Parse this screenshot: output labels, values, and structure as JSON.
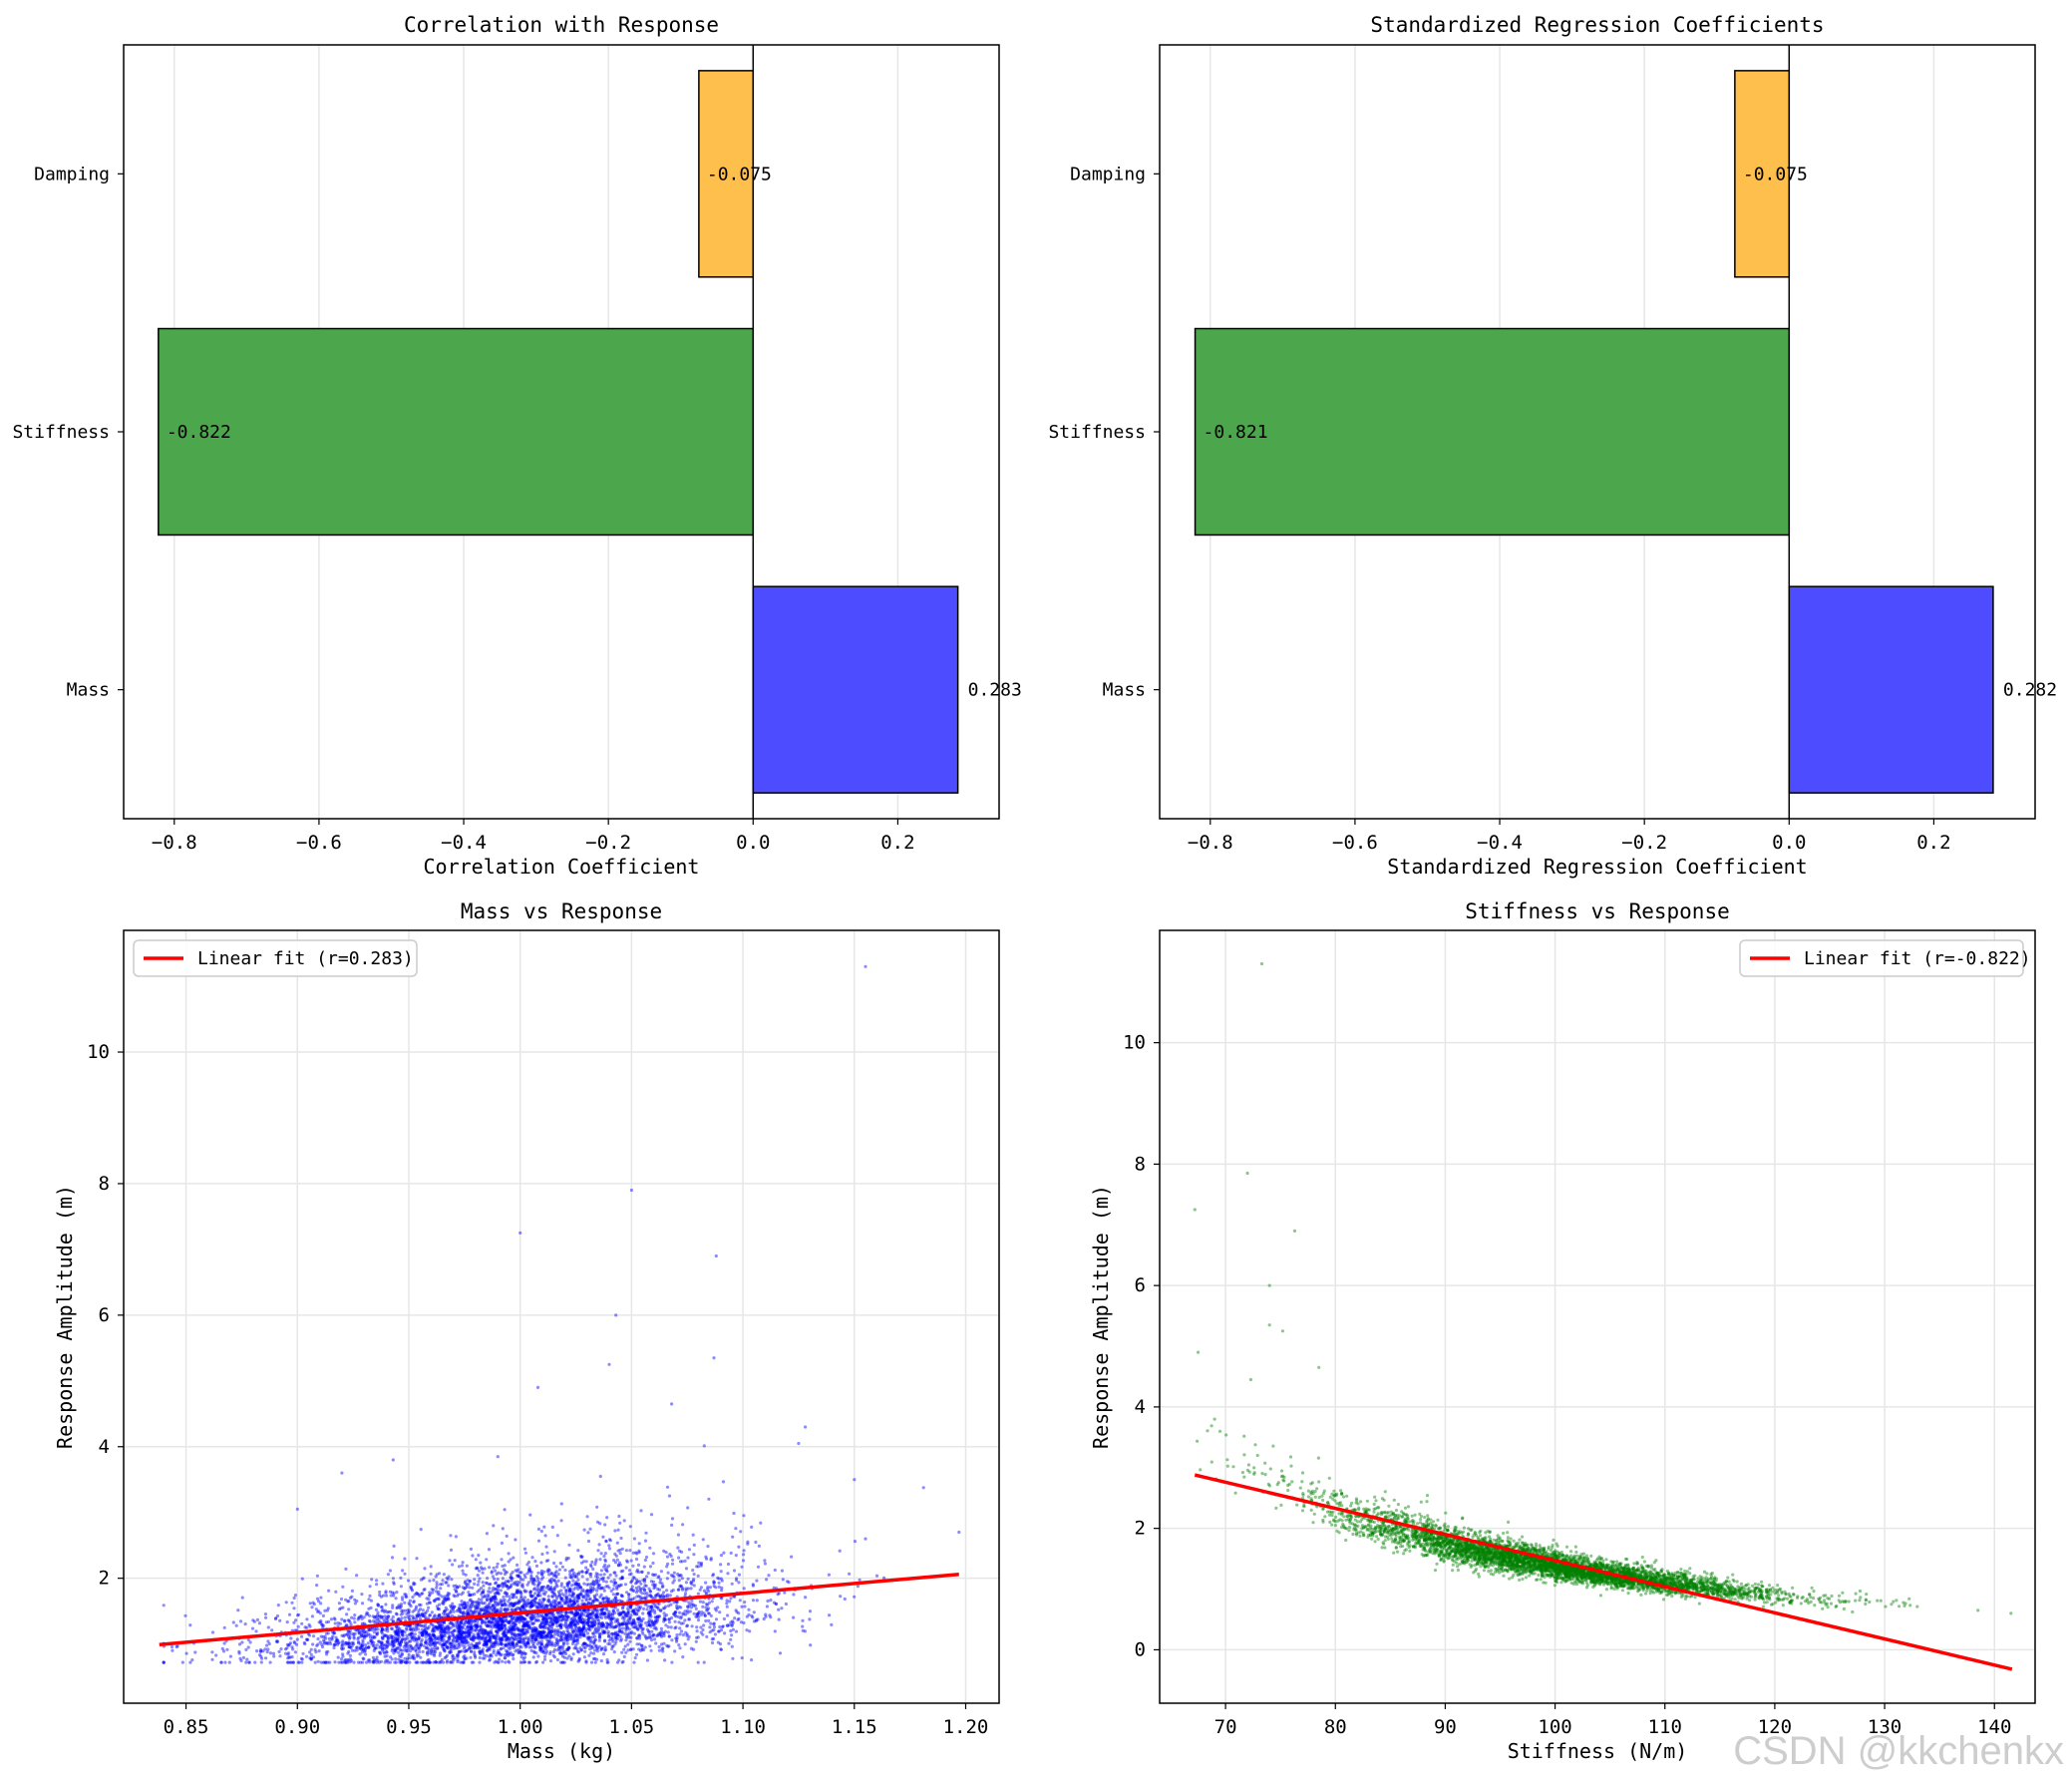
{
  "watermark": "CSDN @kkchenkx",
  "chart_data": [
    {
      "type": "bar",
      "orientation": "horizontal",
      "title": "Correlation with Response",
      "xlabel": "Correlation Coefficient",
      "ylabel": "",
      "categories": [
        "Mass",
        "Stiffness",
        "Damping"
      ],
      "values": [
        0.283,
        -0.822,
        -0.075
      ],
      "value_labels": [
        "0.283",
        "-0.822",
        "-0.075"
      ],
      "colors": [
        "#4d4dff",
        "#4ca64c",
        "#ffbf4d"
      ],
      "xlim": [
        -0.87,
        0.34
      ],
      "xticks": [
        -0.8,
        -0.6,
        -0.4,
        -0.2,
        0.0,
        0.2
      ],
      "xtick_labels": [
        "−0.8",
        "−0.6",
        "−0.4",
        "−0.2",
        "0.0",
        "0.2"
      ],
      "grid": "x"
    },
    {
      "type": "bar",
      "orientation": "horizontal",
      "title": "Standardized Regression Coefficients",
      "xlabel": "Standardized Regression Coefficient",
      "ylabel": "",
      "categories": [
        "Mass",
        "Stiffness",
        "Damping"
      ],
      "values": [
        0.282,
        -0.821,
        -0.075
      ],
      "value_labels": [
        "0.282",
        "-0.821",
        "-0.075"
      ],
      "colors": [
        "#4d4dff",
        "#4ca64c",
        "#ffbf4d"
      ],
      "xlim": [
        -0.87,
        0.34
      ],
      "xticks": [
        -0.8,
        -0.6,
        -0.4,
        -0.2,
        0.0,
        0.2
      ],
      "xtick_labels": [
        "−0.8",
        "−0.6",
        "−0.4",
        "−0.2",
        "0.0",
        "0.2"
      ],
      "grid": "x"
    },
    {
      "type": "scatter",
      "title": "Mass vs Response",
      "xlabel": "Mass (kg)",
      "ylabel": "Response Amplitude (m)",
      "xlim": [
        0.822,
        1.215
      ],
      "ylim": [
        0.1,
        11.85
      ],
      "xticks": [
        0.85,
        0.9,
        0.95,
        1.0,
        1.05,
        1.1,
        1.15,
        1.2
      ],
      "xtick_labels": [
        "0.85",
        "0.90",
        "0.95",
        "1.00",
        "1.05",
        "1.10",
        "1.15",
        "1.20"
      ],
      "yticks": [
        2,
        4,
        6,
        8,
        10
      ],
      "ytick_labels": [
        "2",
        "4",
        "6",
        "8",
        "10"
      ],
      "point_color": "#0000ff",
      "point_count": 5000,
      "highlight_points": [
        [
          1.155,
          11.3
        ],
        [
          1.05,
          7.9
        ],
        [
          1.0,
          7.25
        ],
        [
          1.088,
          6.9
        ],
        [
          1.043,
          6.0
        ],
        [
          1.087,
          5.35
        ],
        [
          1.04,
          5.25
        ],
        [
          1.008,
          4.9
        ],
        [
          1.068,
          4.65
        ],
        [
          0.943,
          3.8
        ],
        [
          0.99,
          3.85
        ],
        [
          0.92,
          3.6
        ],
        [
          1.128,
          4.3
        ],
        [
          1.125,
          4.05
        ],
        [
          1.197,
          2.7
        ],
        [
          1.155,
          2.6
        ],
        [
          1.15,
          3.5
        ],
        [
          0.9,
          3.05
        ]
      ],
      "fit": {
        "x": [
          0.838,
          1.197
        ],
        "y": [
          0.99,
          2.06
        ],
        "color": "#ff0000"
      },
      "legend": {
        "label": "Linear fit (r=0.283)",
        "position": "top-left"
      },
      "grid": true
    },
    {
      "type": "scatter",
      "title": "Stiffness vs Response",
      "xlabel": "Stiffness (N/m)",
      "ylabel": "Response Amplitude (m)",
      "xlim": [
        64.0,
        143.7
      ],
      "ylim": [
        -0.88,
        11.85
      ],
      "xticks": [
        70,
        80,
        90,
        100,
        110,
        120,
        130,
        140
      ],
      "xtick_labels": [
        "70",
        "80",
        "90",
        "100",
        "110",
        "120",
        "130",
        "140"
      ],
      "yticks": [
        0,
        2,
        4,
        6,
        8,
        10
      ],
      "ytick_labels": [
        "0",
        "2",
        "4",
        "6",
        "8",
        "10"
      ],
      "point_color": "#008000",
      "point_count": 5000,
      "highlight_points": [
        [
          73.3,
          11.3
        ],
        [
          72.0,
          7.85
        ],
        [
          67.2,
          7.25
        ],
        [
          76.3,
          6.9
        ],
        [
          74.0,
          6.0
        ],
        [
          74.0,
          5.35
        ],
        [
          75.2,
          5.25
        ],
        [
          67.5,
          4.9
        ],
        [
          72.3,
          4.45
        ],
        [
          78.5,
          4.65
        ],
        [
          69.0,
          3.8
        ],
        [
          69.5,
          3.6
        ],
        [
          141.5,
          0.6
        ],
        [
          138.5,
          0.65
        ]
      ],
      "fit": {
        "x": [
          67.2,
          141.6
        ],
        "y": [
          2.88,
          -0.32
        ],
        "color": "#ff0000"
      },
      "legend": {
        "label": "Linear fit (r=-0.822)",
        "position": "top-right"
      },
      "grid": true
    }
  ]
}
